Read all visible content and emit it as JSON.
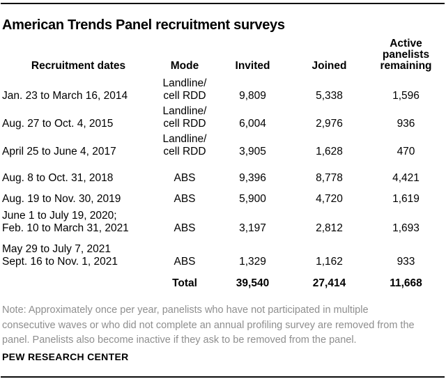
{
  "title": "American Trends Panel recruitment surveys",
  "table": {
    "headers": {
      "dates": "Recruitment dates",
      "mode": "Mode",
      "invited": "Invited",
      "joined": "Joined",
      "remaining": "Active\npanelists\nremaining"
    },
    "rows": [
      {
        "dates": "Jan. 23 to March 16, 2014",
        "mode": "Landline/\ncell RDD",
        "invited": "9,809",
        "joined": "5,338",
        "remaining": "1,596"
      },
      {
        "dates": "Aug. 27 to Oct. 4, 2015",
        "mode": "Landline/\ncell RDD",
        "invited": "6,004",
        "joined": "2,976",
        "remaining": "936"
      },
      {
        "dates": "April 25 to June 4, 2017",
        "mode": "Landline/\ncell RDD",
        "invited": "3,905",
        "joined": "1,628",
        "remaining": "470"
      },
      {
        "dates": "Aug. 8 to Oct. 31, 2018",
        "mode": "ABS",
        "invited": "9,396",
        "joined": "8,778",
        "remaining": "4,421"
      },
      {
        "dates": "Aug. 19 to Nov. 30, 2019",
        "mode": "ABS",
        "invited": "5,900",
        "joined": "4,720",
        "remaining": "1,619"
      },
      {
        "dates": "June 1 to July 19, 2020;\nFeb. 10 to March 31, 2021",
        "mode": "ABS",
        "invited": "3,197",
        "joined": "2,812",
        "remaining": "1,693"
      },
      {
        "dates": "May 29 to July 7, 2021\nSept. 16 to Nov. 1, 2021",
        "mode": "ABS",
        "invited": "1,329",
        "joined": "1,162",
        "remaining": "933"
      }
    ],
    "total": {
      "label": "Total",
      "invited": "39,540",
      "joined": "27,414",
      "remaining": "11,668"
    }
  },
  "note": "Note: Approximately once per year, panelists who have not participated in multiple\nconsecutive waves or who did not complete an annual profiling survey are removed from the\npanel. Panelists also become inactive if they ask to be removed from the panel.",
  "source": "PEW RESEARCH CENTER",
  "colors": {
    "text": "#000000",
    "note_text": "#8e8e8e",
    "rule": "#0a0a0a",
    "background": "#ffffff"
  },
  "chart_data": {
    "type": "table",
    "title": "American Trends Panel recruitment surveys",
    "columns": [
      "Recruitment dates",
      "Mode",
      "Invited",
      "Joined",
      "Active panelists remaining"
    ],
    "rows": [
      [
        "Jan. 23 to March 16, 2014",
        "Landline/cell RDD",
        9809,
        5338,
        1596
      ],
      [
        "Aug. 27 to Oct. 4, 2015",
        "Landline/cell RDD",
        6004,
        2976,
        936
      ],
      [
        "April 25 to June 4, 2017",
        "Landline/cell RDD",
        3905,
        1628,
        470
      ],
      [
        "Aug. 8 to Oct. 31, 2018",
        "ABS",
        9396,
        8778,
        4421
      ],
      [
        "Aug. 19 to Nov. 30, 2019",
        "ABS",
        5900,
        4720,
        1619
      ],
      [
        "June 1 to July 19, 2020; Feb. 10 to March 31, 2021",
        "ABS",
        3197,
        2812,
        1693
      ],
      [
        "May 29 to July 7, 2021; Sept. 16 to Nov. 1, 2021",
        "ABS",
        1329,
        1162,
        933
      ]
    ],
    "total_row": [
      "Total",
      "",
      39540,
      27414,
      11668
    ],
    "note": "Note: Approximately once per year, panelists who have not participated in multiple consecutive waves or who did not complete an annual profiling survey are removed from the panel. Panelists also become inactive if they ask to be removed from the panel.",
    "source": "PEW RESEARCH CENTER"
  }
}
